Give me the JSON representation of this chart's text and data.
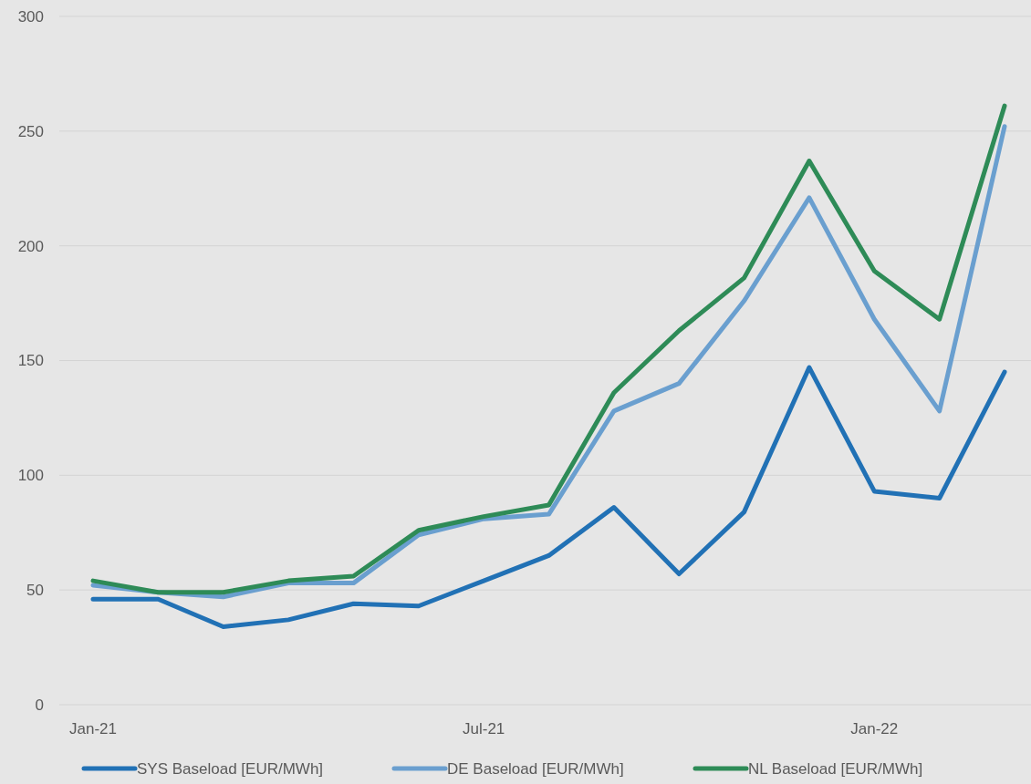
{
  "chart_data": {
    "type": "line",
    "categories": [
      "Jan-21",
      null,
      null,
      null,
      null,
      null,
      "Jul-21",
      null,
      null,
      null,
      null,
      null,
      "Jan-22",
      null,
      null
    ],
    "series": [
      {
        "name": "SYS Baseload [EUR/MWh]",
        "color": "#2171b5",
        "values": [
          46,
          46,
          34,
          37,
          44,
          43,
          54,
          65,
          86,
          57,
          84,
          147,
          93,
          90,
          145
        ]
      },
      {
        "name": "DE Baseload [EUR/MWh]",
        "color": "#6a9fcf",
        "values": [
          52,
          49,
          47,
          53,
          53,
          74,
          81,
          83,
          128,
          140,
          176,
          221,
          168,
          128,
          252
        ]
      },
      {
        "name": "NL Baseload [EUR/MWh]",
        "color": "#2e8b57",
        "values": [
          54,
          49,
          49,
          54,
          56,
          76,
          82,
          87,
          136,
          163,
          186,
          237,
          189,
          168,
          261
        ]
      }
    ],
    "ylim": [
      0,
      300
    ],
    "yticks": [
      0,
      50,
      100,
      150,
      200,
      250,
      300
    ],
    "grid": "y",
    "legend": "bottom",
    "marker": "none",
    "line_style": "solid"
  }
}
